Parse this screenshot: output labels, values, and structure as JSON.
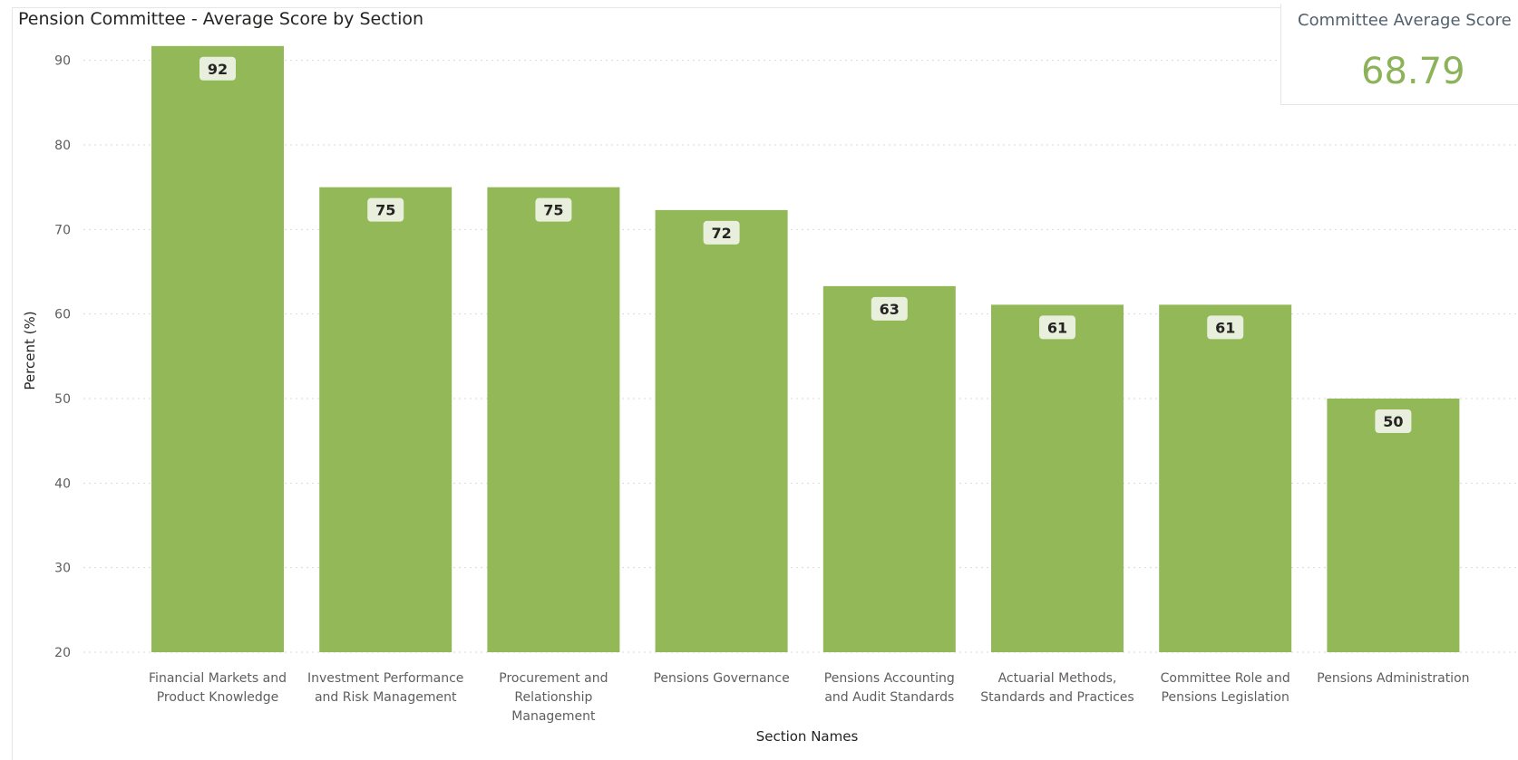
{
  "title": "Pension Committee - Average Score by Section",
  "card": {
    "title": "Committee Average Score",
    "value": "68.79"
  },
  "colors": {
    "bar": "#93b858",
    "label_bg": "#e8efdc",
    "grid": "#d9d9d9"
  },
  "chart_data": {
    "type": "bar",
    "categories": [
      [
        "Financial Markets and",
        "Product Knowledge"
      ],
      [
        "Investment Performance",
        "and Risk Management"
      ],
      [
        "Procurement and",
        "Relationship",
        "Management"
      ],
      [
        "Pensions Governance"
      ],
      [
        "Pensions Accounting",
        "and Audit Standards"
      ],
      [
        "Actuarial Methods,",
        "Standards and Practices"
      ],
      [
        "Committee Role and",
        "Pensions Legislation"
      ],
      [
        "Pensions Administration"
      ]
    ],
    "values": [
      91.7,
      75,
      75,
      72.3,
      63.3,
      61.1,
      61.1,
      50
    ],
    "data_labels": [
      "92",
      "75",
      "75",
      "72",
      "63",
      "61",
      "61",
      "50"
    ],
    "xlabel": "Section Names",
    "ylabel": "Percent (%)",
    "ylim": [
      20,
      92
    ],
    "yticks": [
      "20",
      "30",
      "40",
      "50",
      "60",
      "70",
      "80",
      "90"
    ],
    "grid": true
  }
}
